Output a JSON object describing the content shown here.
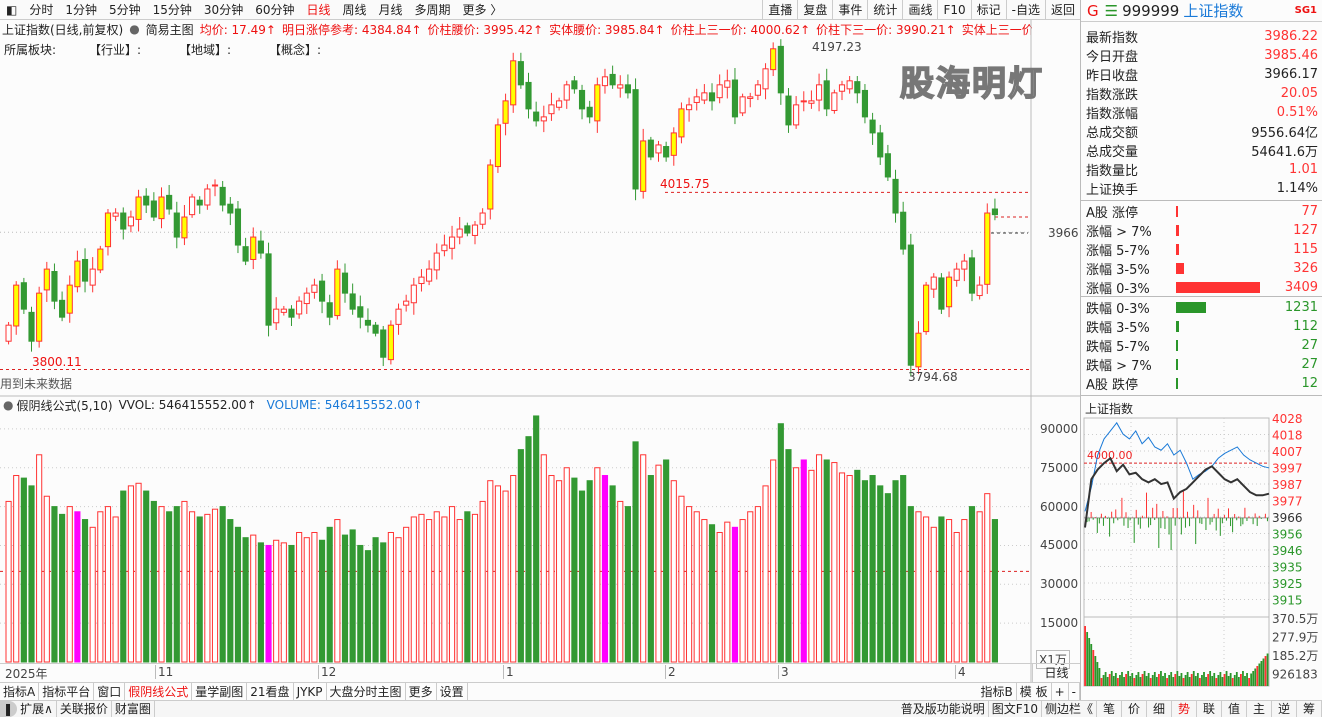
{
  "topbar": {
    "periods": [
      "分时",
      "1分钟",
      "5分钟",
      "15分钟",
      "30分钟",
      "60分钟",
      "日线",
      "周线",
      "月线",
      "多周期",
      "更多 〉"
    ],
    "active": "日线",
    "right": [
      "直播",
      "复盘",
      "事件",
      "统计",
      "画线",
      "F10",
      "标记",
      "-自选",
      "返回"
    ]
  },
  "info": {
    "title": "上证指数(日线,前复权)",
    "main_chart": "简易主图",
    "items": [
      {
        "t": "均价: 17.49↑"
      },
      {
        "t": "明日涨停参考: 4384.84↑"
      },
      {
        "t": "价柱腰价: 3995.42↑"
      },
      {
        "t": "实体腰价: 3985.84↑"
      },
      {
        "t": "价柱上三一价: 4000.62↑"
      },
      {
        "t": "价柱下三一价: 3990.21↑"
      },
      {
        "t": "实体上三一价: ◇"
      }
    ]
  },
  "sectors": {
    "label": "所属板块:",
    "industry": "【行业】:",
    "region": "【地域】:",
    "concept": "【概念】:"
  },
  "main_chart": {
    "high_label": "4197.23",
    "low_label": "3794.68",
    "left_low_label": "3800.11",
    "support_label": "4015.75",
    "price_label": "3966",
    "note": "用到未来数据"
  },
  "indicator": {
    "name": "假阴线公式(5,10)",
    "vvol": "VVOL: 546415552.00↑",
    "volume": "VOLUME: 546415552.00↑",
    "unit": "X1万",
    "yticks": [
      "90000",
      "75000",
      "60000",
      "45000",
      "30000",
      "15000"
    ]
  },
  "date_axis": {
    "labels": [
      "2025年",
      "11",
      "12",
      "1",
      "2",
      "3",
      "4"
    ],
    "period": "日线"
  },
  "chart_data": {
    "type": "candlestick",
    "closes": [
      3850,
      3900,
      3870,
      3830,
      3890,
      3920,
      3880,
      3860,
      3900,
      3930,
      3905,
      3920,
      3945,
      3990,
      3990,
      3970,
      3985,
      4010,
      4000,
      3985,
      4010,
      3995,
      3960,
      3985,
      4010,
      4000,
      4020,
      4025,
      4000,
      3990,
      3950,
      3930,
      3960,
      3940,
      3850,
      3870,
      3870,
      3860,
      3880,
      3890,
      3900,
      3880,
      3860,
      3920,
      3890,
      3870,
      3860,
      3850,
      3840,
      3810,
      3850,
      3870,
      3880,
      3900,
      3910,
      3920,
      3940,
      3950,
      3960,
      3970,
      3965,
      3975,
      3990,
      4050,
      4100,
      4130,
      4180,
      4150,
      4120,
      4105,
      4110,
      4125,
      4130,
      4150,
      4145,
      4120,
      4110,
      4150,
      4160,
      4150,
      4150,
      4140,
      4020,
      4080,
      4060,
      4075,
      4060,
      4090,
      4120,
      4125,
      4135,
      4140,
      4130,
      4150,
      4155,
      4110,
      4135,
      4135,
      4150,
      4170,
      4195,
      4140,
      4100,
      4125,
      4130,
      4130,
      4150,
      4120,
      4140,
      4150,
      4155,
      4140,
      4110,
      4090,
      4060,
      4035,
      3990,
      3945,
      3800,
      3840,
      3900,
      3910,
      3870,
      3910,
      3920,
      3930,
      3890,
      3900,
      3990,
      3988
    ],
    "volumes": [
      62000,
      72000,
      71000,
      68000,
      80000,
      64000,
      60000,
      57000,
      60000,
      58000,
      55000,
      52000,
      58000,
      60000,
      56000,
      66000,
      68000,
      69000,
      66000,
      62000,
      60000,
      58000,
      60000,
      62000,
      58000,
      56000,
      57000,
      59000,
      60000,
      55000,
      52000,
      48000,
      49000,
      46000,
      45000,
      47000,
      46000,
      45000,
      50000,
      48000,
      50000,
      47000,
      52000,
      55000,
      49000,
      51000,
      45000,
      43000,
      48000,
      46000,
      50000,
      48000,
      52000,
      56000,
      57000,
      55000,
      58000,
      56000,
      60000,
      55000,
      58000,
      57000,
      62000,
      70000,
      68000,
      66000,
      72000,
      82000,
      87000,
      95000,
      80000,
      72000,
      70000,
      75000,
      71000,
      66000,
      70000,
      75000,
      72000,
      68000,
      62000,
      60000,
      85000,
      80000,
      72000,
      76000,
      78000,
      70000,
      64000,
      60000,
      58000,
      55000,
      53000,
      50000,
      54000,
      52000,
      55000,
      58000,
      60000,
      68000,
      78000,
      92000,
      82000,
      75000,
      78000,
      74000,
      80000,
      78000,
      77000,
      73000,
      72000,
      74000,
      70000,
      72000,
      68000,
      65000,
      70000,
      72000,
      60000,
      58000,
      56000,
      52000,
      56000,
      55000,
      50000,
      55000,
      60000,
      58000,
      65000,
      55000
    ],
    "magenta_bars": [
      9,
      34,
      78,
      95,
      104
    ],
    "price_range": [
      3794.68,
      4197.23
    ],
    "volume_ylim": [
      0,
      100000
    ],
    "volume_ref_line": 35000,
    "colors": {
      "up": "#ff3333",
      "down": "#339933",
      "strong_up_fill": "#ffff00",
      "special": "#ff00ff"
    }
  },
  "right_panel": {
    "code_prefix": "G",
    "code": "999999",
    "name": "上证指数",
    "badge": "SG1",
    "watermark": "股海明灯",
    "stats": [
      {
        "k": "最新指数",
        "v": "3986.22",
        "c": "red"
      },
      {
        "k": "今日开盘",
        "v": "3985.46",
        "c": "red"
      },
      {
        "k": "昨日收盘",
        "v": "3966.17",
        "c": ""
      },
      {
        "k": "指数涨跌",
        "v": "20.05",
        "c": "red"
      },
      {
        "k": "指数涨幅",
        "v": "0.51%",
        "c": "red"
      },
      {
        "k": "总成交额",
        "v": "9556.64亿",
        "c": ""
      },
      {
        "k": "总成交量",
        "v": "54641.6万",
        "c": ""
      },
      {
        "k": "指数量比",
        "v": "1.01",
        "c": "red"
      },
      {
        "k": "上证换手",
        "v": "1.14%",
        "c": ""
      }
    ],
    "breadth_up": [
      {
        "k": "A股 涨停",
        "v": "77"
      },
      {
        "k": "涨幅 > 7%",
        "v": "127"
      },
      {
        "k": "涨幅 5-7%",
        "v": "115"
      },
      {
        "k": "涨幅 3-5%",
        "v": "326"
      },
      {
        "k": "涨幅 0-3%",
        "v": "3409"
      }
    ],
    "breadth_down": [
      {
        "k": "跌幅 0-3%",
        "v": "1231"
      },
      {
        "k": "跌幅 3-5%",
        "v": "112"
      },
      {
        "k": "跌幅 5-7%",
        "v": "27"
      },
      {
        "k": "跌幅 > 7%",
        "v": "27"
      },
      {
        "k": "A股 跌停",
        "v": "12"
      }
    ],
    "mini": {
      "title": "上证指数",
      "ref_label": "4000.00",
      "price_ticks": [
        "4028",
        "4018",
        "4007",
        "3997",
        "3987",
        "3977",
        "3966",
        "3956",
        "3946",
        "3935",
        "3925",
        "3915"
      ],
      "vol_ticks": [
        "370.5万",
        "277.9万",
        "185.2万",
        "926183"
      ],
      "blue": [
        3970,
        3985,
        4005,
        4015,
        4020,
        4025,
        4018,
        4015,
        4020,
        4012,
        4016,
        4010,
        4008,
        4012,
        4005,
        4008,
        4000,
        3990,
        3993,
        3995,
        3998,
        4003,
        4006,
        4008,
        4010,
        4005,
        4002,
        4000,
        3998,
        3997
      ],
      "black": [
        3960,
        3990,
        3996,
        4000,
        4003,
        3995,
        3999,
        3993,
        3994,
        3990,
        3988,
        3990,
        3987,
        3988,
        3978,
        3982,
        3984,
        3988,
        3992,
        3996,
        3998,
        3994,
        3990,
        3988,
        3990,
        3986,
        3982,
        3980,
        3980,
        3981
      ]
    }
  },
  "tabs": {
    "left": [
      "指标A",
      "指标平台",
      "窗口",
      "假阴线公式",
      "量学副图",
      "21看盘",
      "JYKP",
      "大盘分时主图",
      "更多",
      "设置"
    ],
    "active": "假阴线公式",
    "right": [
      "指标B",
      "模 板",
      "+",
      "-"
    ]
  },
  "status": {
    "left": [
      "扩展∧",
      "关联报价",
      "财富圈"
    ],
    "right": [
      "普及版功能说明",
      "图文F10",
      "侧边栏《"
    ],
    "modes": [
      "笔",
      "价",
      "细",
      "势",
      "联",
      "值",
      "主",
      "逆",
      "筹"
    ],
    "active_mode": "势"
  }
}
